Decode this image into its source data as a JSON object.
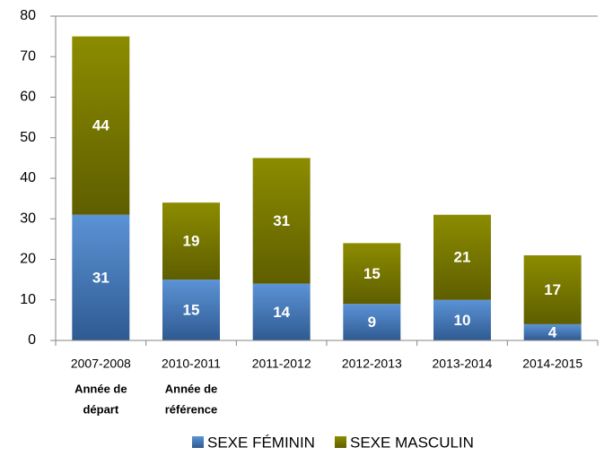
{
  "chart_data": {
    "type": "bar",
    "stacked": true,
    "categories": [
      "2007-2008",
      "2010-2011",
      "2011-2012",
      "2012-2013",
      "2013-2014",
      "2014-2015"
    ],
    "series": [
      {
        "name": "SEXE FÉMININ",
        "color": "#4a7ebb",
        "values": [
          31,
          15,
          14,
          9,
          10,
          4
        ]
      },
      {
        "name": "SEXE MASCULIN",
        "color": "#7f7f00",
        "values": [
          44,
          19,
          31,
          15,
          21,
          17
        ]
      }
    ],
    "annotations": [
      [
        "Année de",
        "départ"
      ],
      [
        "Année de",
        "référence"
      ]
    ],
    "ylim": [
      0,
      80
    ],
    "yticks": [
      0,
      10,
      20,
      30,
      40,
      50,
      60,
      70,
      80
    ],
    "grid": false,
    "legend": "bottom"
  }
}
